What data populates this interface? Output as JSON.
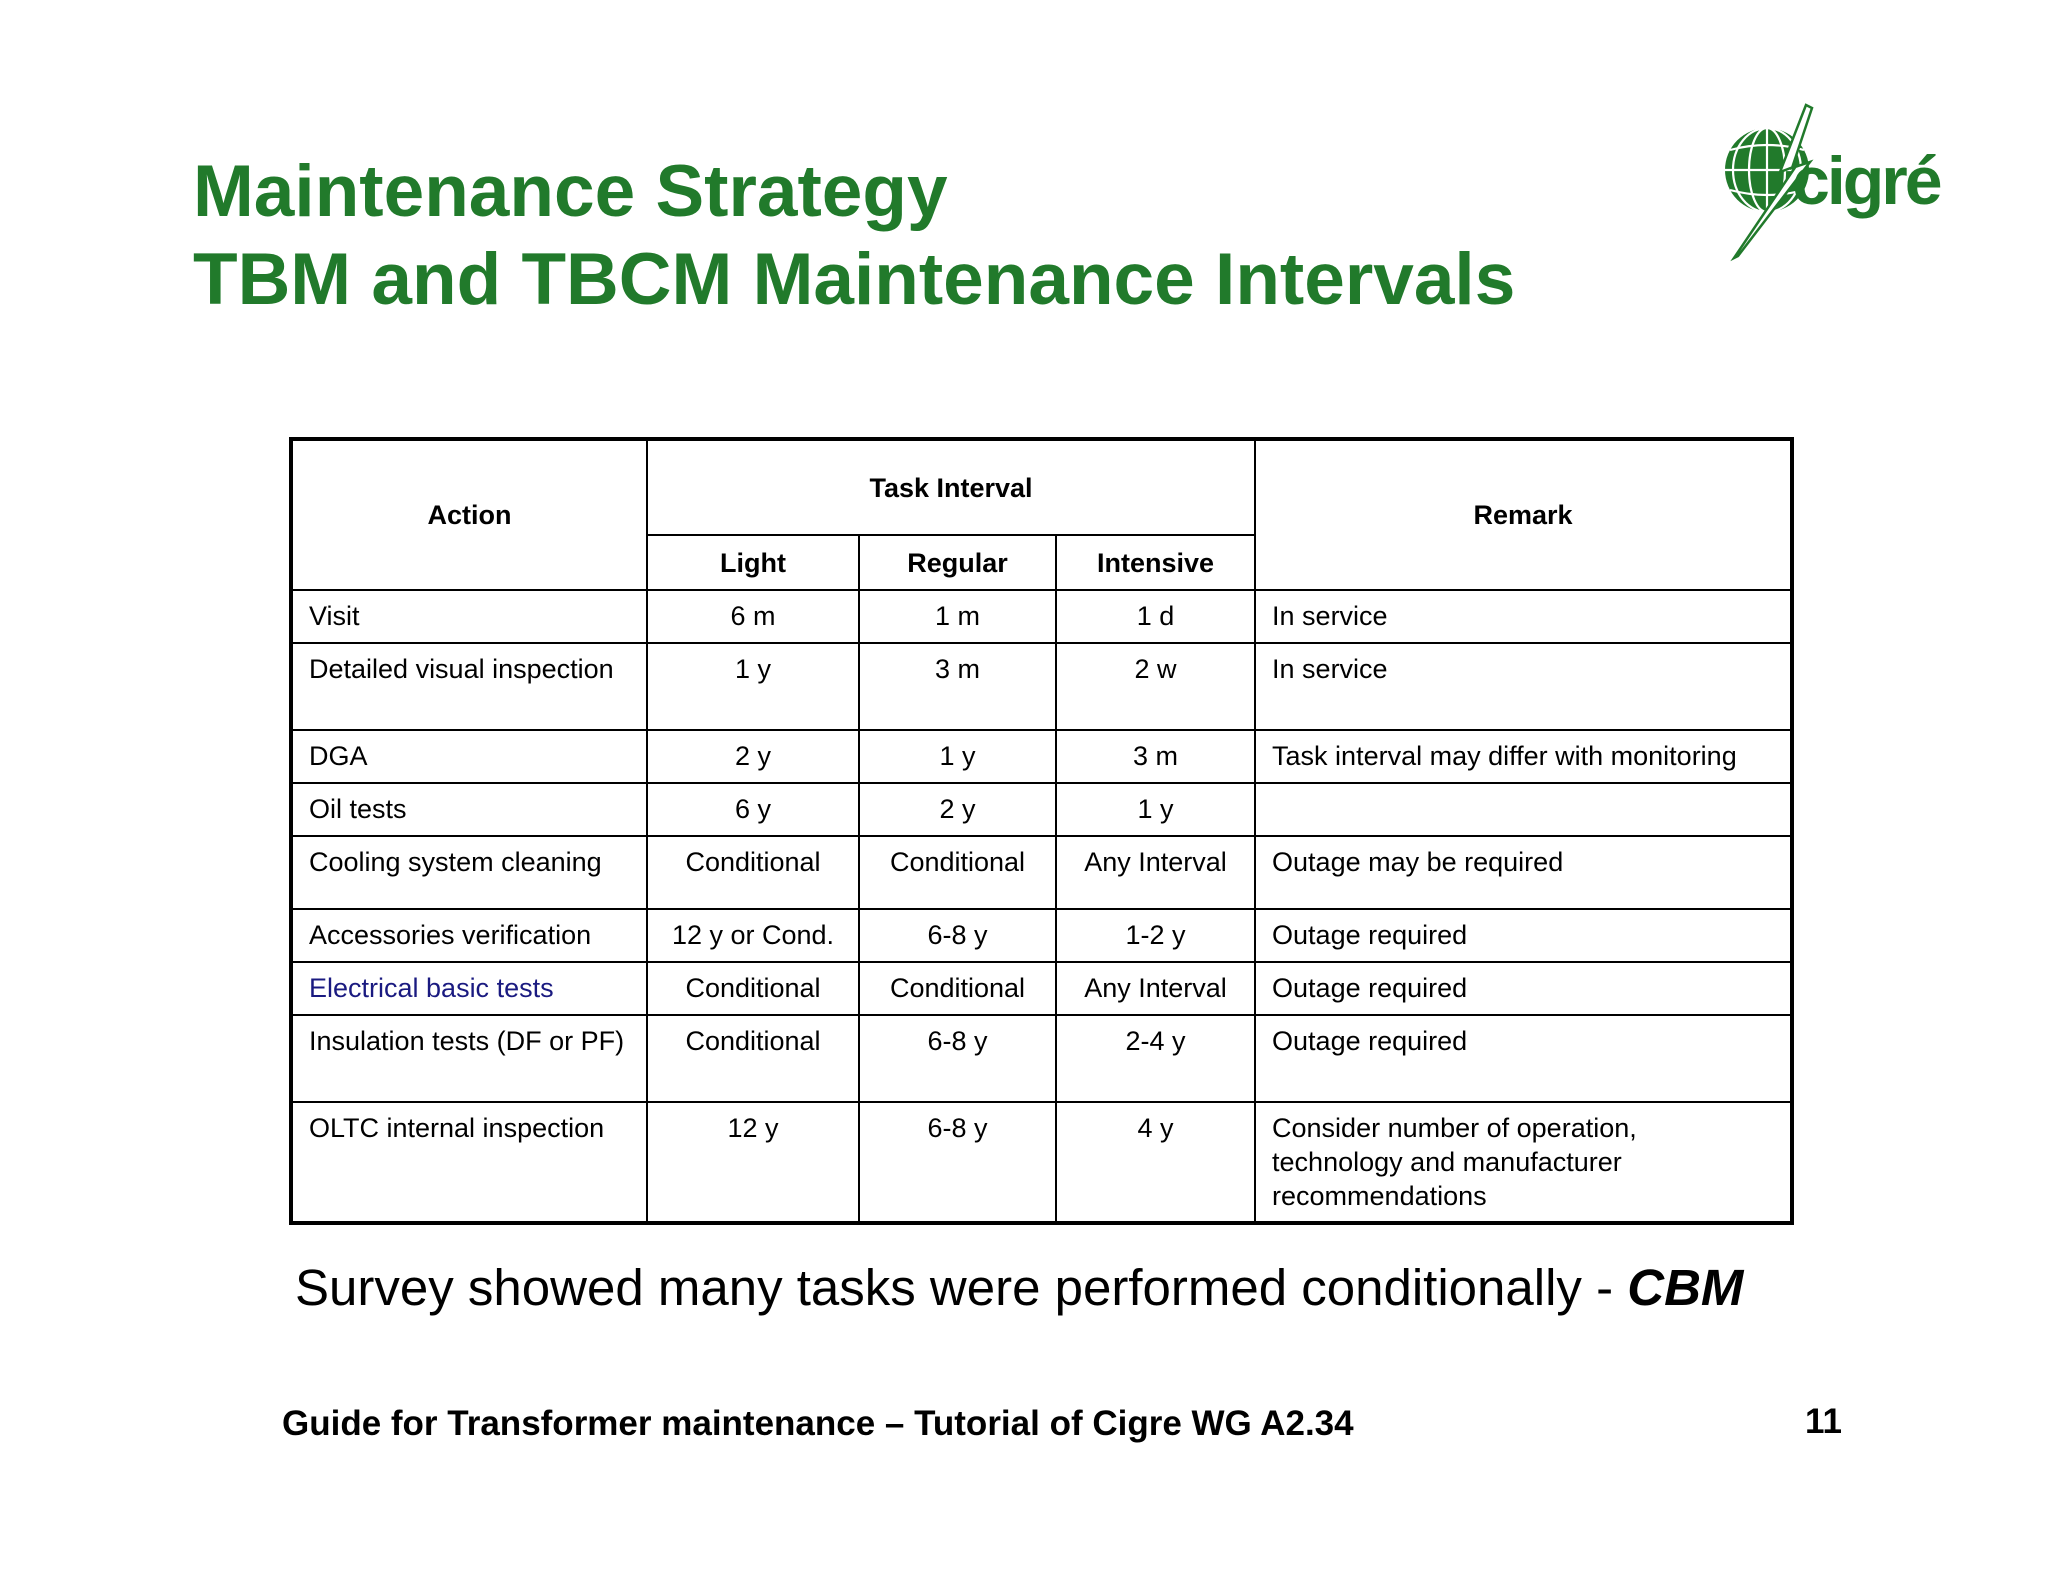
{
  "title": {
    "line1": "Maintenance Strategy",
    "line2": "TBM and TBCM Maintenance Intervals"
  },
  "logo": {
    "text": "cigré",
    "icon": "globe-lightning-icon",
    "color": "#217a2b"
  },
  "table": {
    "headers": {
      "action": "Action",
      "task_interval": "Task Interval",
      "remark": "Remark",
      "light": "Light",
      "regular": "Regular",
      "intensive": "Intensive"
    },
    "rows": [
      {
        "action": "Visit",
        "light": "6 m",
        "regular": "1 m",
        "intensive": "1 d",
        "remark": "In service"
      },
      {
        "action": "Detailed visual inspection",
        "light": "1 y",
        "regular": "3 m",
        "intensive": "2 w",
        "remark": "In service"
      },
      {
        "action": "DGA",
        "light": "2 y",
        "regular": "1 y",
        "intensive": "3 m",
        "remark": "Task interval may differ with monitoring"
      },
      {
        "action": "Oil tests",
        "light": "6 y",
        "regular": "2 y",
        "intensive": "1 y",
        "remark": ""
      },
      {
        "action": "Cooling system cleaning",
        "light": "Conditional",
        "regular": "Conditional",
        "intensive": "Any Interval",
        "remark": "Outage may be required"
      },
      {
        "action": "Accessories verification",
        "light": "12 y or Cond.",
        "regular": "6-8 y",
        "intensive": "1-2 y",
        "remark": "Outage required"
      },
      {
        "action": "Electrical basic tests",
        "light": "Conditional",
        "regular": "Conditional",
        "intensive": "Any Interval",
        "remark": "Outage required"
      },
      {
        "action": "Insulation tests (DF or PF)",
        "light": "Conditional",
        "regular": "6-8 y",
        "intensive": "2-4 y",
        "remark": "Outage required"
      },
      {
        "action": "OLTC internal inspection",
        "light": "12 y",
        "regular": "6-8 y",
        "intensive": "4 y",
        "remark": "Consider number of operation, technology and manufacturer recommendations"
      }
    ]
  },
  "conclusion": {
    "text": "Survey showed many tasks were performed conditionally - ",
    "emphasis": "CBM"
  },
  "footer": {
    "text": "Guide for Transformer maintenance – Tutorial of Cigre WG A2.34",
    "page_number": "11"
  },
  "colors": {
    "title": "#217a2b",
    "highlight_row_text": "#1a1a80"
  }
}
